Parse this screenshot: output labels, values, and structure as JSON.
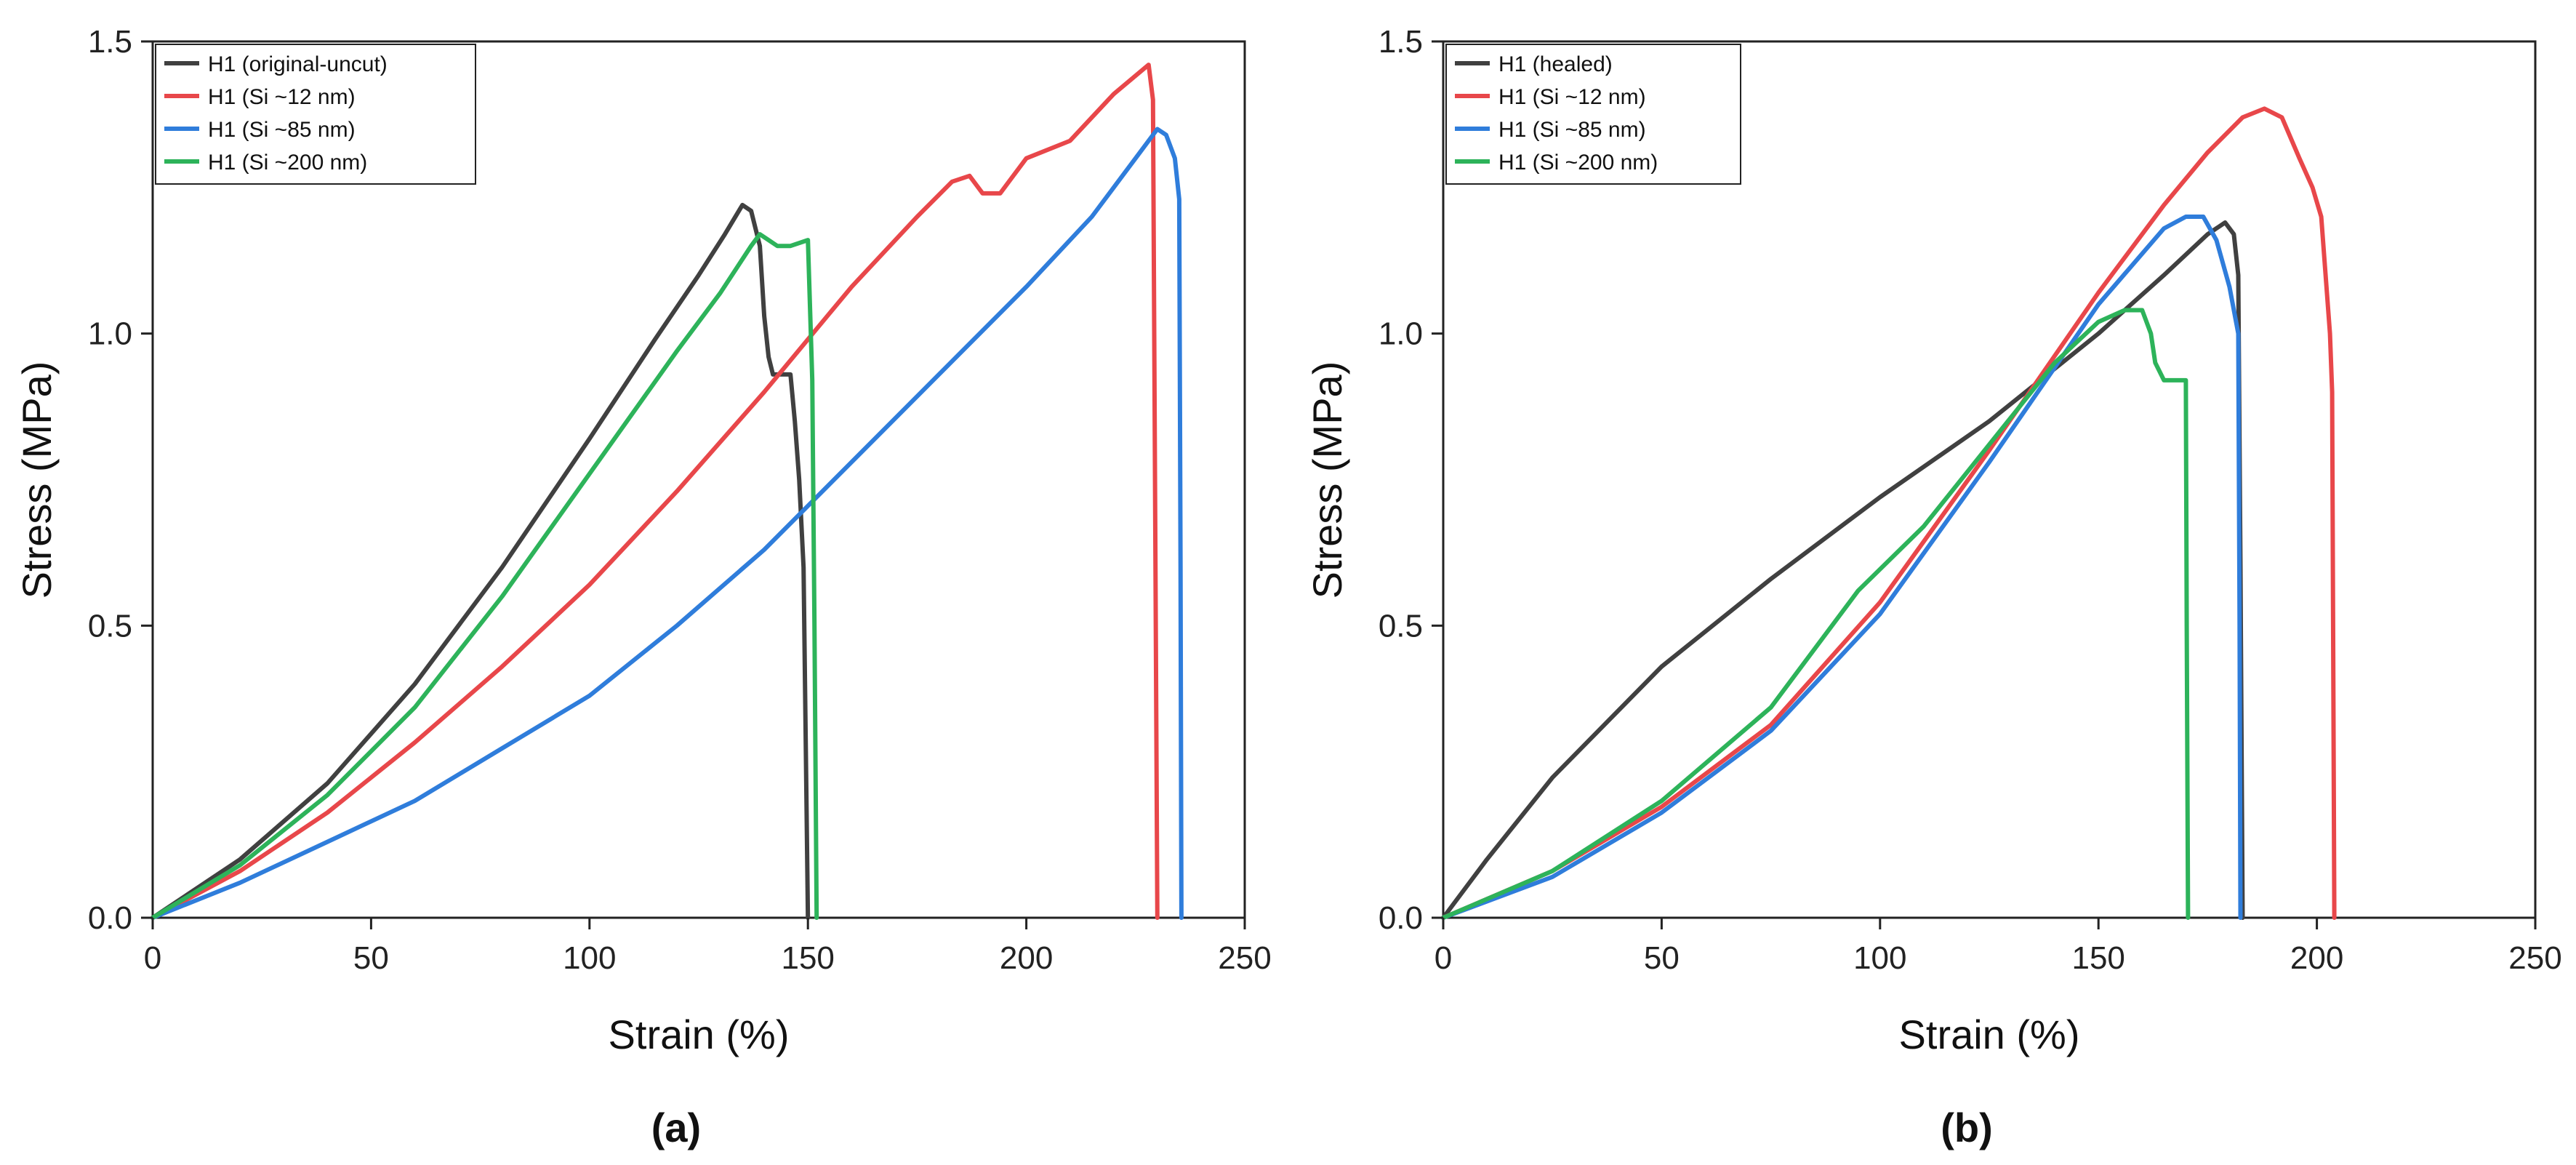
{
  "chart_data": [
    {
      "panel": "a",
      "type": "line",
      "caption": "(a)",
      "xlabel": "Strain (%)",
      "ylabel": "Stress (MPa)",
      "xlim": [
        0,
        250
      ],
      "ylim": [
        0,
        1.5
      ],
      "xticks": [
        0,
        50,
        100,
        150,
        200,
        250
      ],
      "yticks": [
        0.0,
        0.5,
        1.0,
        1.5
      ],
      "xtick_labels": [
        "0",
        "50",
        "100",
        "150",
        "200",
        "250"
      ],
      "ytick_labels": [
        "0.0",
        "0.5",
        "1.0",
        "1.5"
      ],
      "grid": false,
      "legend_position": "top-left",
      "series": [
        {
          "name": "H1 (original-uncut)",
          "color": "#404040",
          "points": [
            [
              0,
              0
            ],
            [
              20,
              0.1
            ],
            [
              40,
              0.23
            ],
            [
              60,
              0.4
            ],
            [
              80,
              0.6
            ],
            [
              100,
              0.82
            ],
            [
              115,
              0.99
            ],
            [
              125,
              1.1
            ],
            [
              131,
              1.17
            ],
            [
              135,
              1.22
            ],
            [
              137,
              1.21
            ],
            [
              139,
              1.15
            ],
            [
              140,
              1.03
            ],
            [
              141,
              0.96
            ],
            [
              142,
              0.93
            ],
            [
              144,
              0.93
            ],
            [
              146,
              0.93
            ],
            [
              147,
              0.85
            ],
            [
              148,
              0.75
            ],
            [
              149,
              0.6
            ],
            [
              149.5,
              0.3
            ],
            [
              150,
              0.0
            ]
          ]
        },
        {
          "name": "H1 (Si ~12 nm)",
          "color": "#e8474a",
          "points": [
            [
              0,
              0
            ],
            [
              20,
              0.08
            ],
            [
              40,
              0.18
            ],
            [
              60,
              0.3
            ],
            [
              80,
              0.43
            ],
            [
              100,
              0.57
            ],
            [
              120,
              0.73
            ],
            [
              140,
              0.9
            ],
            [
              160,
              1.08
            ],
            [
              175,
              1.2
            ],
            [
              183,
              1.26
            ],
            [
              187,
              1.27
            ],
            [
              190,
              1.24
            ],
            [
              194,
              1.24
            ],
            [
              200,
              1.3
            ],
            [
              210,
              1.33
            ],
            [
              220,
              1.41
            ],
            [
              228,
              1.46
            ],
            [
              229,
              1.4
            ],
            [
              229.5,
              0.7
            ],
            [
              230,
              0.0
            ]
          ]
        },
        {
          "name": "H1 (Si ~85 nm)",
          "color": "#2f7ddb",
          "points": [
            [
              0,
              0
            ],
            [
              20,
              0.06
            ],
            [
              40,
              0.13
            ],
            [
              60,
              0.2
            ],
            [
              80,
              0.29
            ],
            [
              100,
              0.38
            ],
            [
              120,
              0.5
            ],
            [
              140,
              0.63
            ],
            [
              160,
              0.78
            ],
            [
              180,
              0.93
            ],
            [
              200,
              1.08
            ],
            [
              215,
              1.2
            ],
            [
              225,
              1.3
            ],
            [
              230,
              1.35
            ],
            [
              232,
              1.34
            ],
            [
              234,
              1.3
            ],
            [
              235,
              1.23
            ],
            [
              235.3,
              0.6
            ],
            [
              235.5,
              0.0
            ]
          ]
        },
        {
          "name": "H1 (Si ~200 nm)",
          "color": "#2db35a",
          "points": [
            [
              0,
              0
            ],
            [
              20,
              0.09
            ],
            [
              40,
              0.21
            ],
            [
              60,
              0.36
            ],
            [
              80,
              0.55
            ],
            [
              100,
              0.76
            ],
            [
              120,
              0.97
            ],
            [
              130,
              1.07
            ],
            [
              137,
              1.15
            ],
            [
              139,
              1.17
            ],
            [
              141,
              1.16
            ],
            [
              143,
              1.15
            ],
            [
              146,
              1.15
            ],
            [
              150,
              1.16
            ],
            [
              151,
              0.92
            ],
            [
              151.5,
              0.5
            ],
            [
              152,
              0.0
            ]
          ]
        }
      ]
    },
    {
      "panel": "b",
      "type": "line",
      "caption": "(b)",
      "xlabel": "Strain (%)",
      "ylabel": "Stress (MPa)",
      "xlim": [
        0,
        250
      ],
      "ylim": [
        0,
        1.5
      ],
      "xticks": [
        0,
        50,
        100,
        150,
        200,
        250
      ],
      "yticks": [
        0.0,
        0.5,
        1.0,
        1.5
      ],
      "xtick_labels": [
        "0",
        "50",
        "100",
        "150",
        "200",
        "250"
      ],
      "ytick_labels": [
        "0.0",
        "0.5",
        "1.0",
        "1.5"
      ],
      "grid": false,
      "legend_position": "top-left",
      "series": [
        {
          "name": "H1 (healed)",
          "color": "#404040",
          "points": [
            [
              0,
              0
            ],
            [
              10,
              0.1
            ],
            [
              25,
              0.24
            ],
            [
              50,
              0.43
            ],
            [
              75,
              0.58
            ],
            [
              100,
              0.72
            ],
            [
              125,
              0.85
            ],
            [
              150,
              1.0
            ],
            [
              165,
              1.1
            ],
            [
              175,
              1.17
            ],
            [
              179,
              1.19
            ],
            [
              181,
              1.17
            ],
            [
              182,
              1.1
            ],
            [
              182.5,
              0.6
            ],
            [
              183,
              0.0
            ]
          ]
        },
        {
          "name": "H1 (Si ~12 nm)",
          "color": "#e8474a",
          "points": [
            [
              0,
              0
            ],
            [
              25,
              0.08
            ],
            [
              50,
              0.19
            ],
            [
              75,
              0.33
            ],
            [
              100,
              0.54
            ],
            [
              125,
              0.8
            ],
            [
              150,
              1.07
            ],
            [
              165,
              1.22
            ],
            [
              175,
              1.31
            ],
            [
              183,
              1.37
            ],
            [
              188,
              1.385
            ],
            [
              192,
              1.37
            ],
            [
              196,
              1.3
            ],
            [
              199,
              1.25
            ],
            [
              201,
              1.2
            ],
            [
              202,
              1.1
            ],
            [
              203,
              1.0
            ],
            [
              203.5,
              0.9
            ],
            [
              204,
              0.0
            ]
          ]
        },
        {
          "name": "H1 (Si ~85 nm)",
          "color": "#2f7ddb",
          "points": [
            [
              0,
              0
            ],
            [
              25,
              0.07
            ],
            [
              50,
              0.18
            ],
            [
              75,
              0.32
            ],
            [
              100,
              0.52
            ],
            [
              125,
              0.78
            ],
            [
              150,
              1.05
            ],
            [
              165,
              1.18
            ],
            [
              170,
              1.2
            ],
            [
              174,
              1.2
            ],
            [
              177,
              1.16
            ],
            [
              180,
              1.08
            ],
            [
              182,
              1.0
            ],
            [
              182.3,
              0.5
            ],
            [
              182.5,
              0.0
            ]
          ]
        },
        {
          "name": "H1 (Si ~200 nm)",
          "color": "#2db35a",
          "points": [
            [
              0,
              0
            ],
            [
              25,
              0.08
            ],
            [
              50,
              0.2
            ],
            [
              75,
              0.36
            ],
            [
              95,
              0.56
            ],
            [
              110,
              0.67
            ],
            [
              125,
              0.81
            ],
            [
              140,
              0.95
            ],
            [
              150,
              1.02
            ],
            [
              156,
              1.04
            ],
            [
              160,
              1.04
            ],
            [
              162,
              1.0
            ],
            [
              163,
              0.95
            ],
            [
              165,
              0.92
            ],
            [
              168,
              0.92
            ],
            [
              170,
              0.92
            ],
            [
              170.2,
              0.5
            ],
            [
              170.5,
              0.0
            ]
          ]
        }
      ]
    }
  ]
}
